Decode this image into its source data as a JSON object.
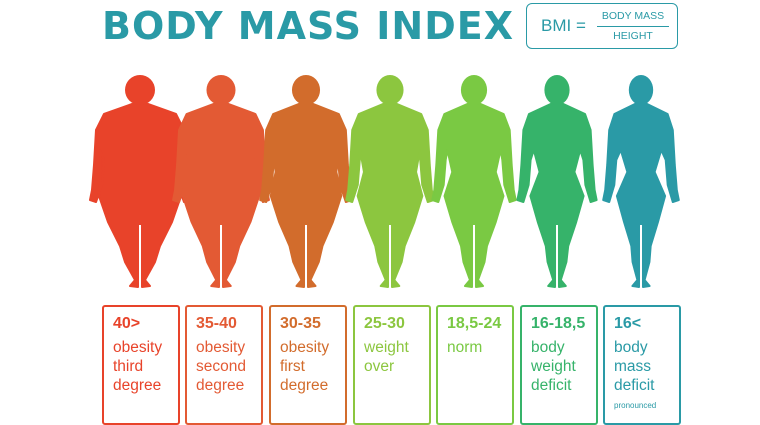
{
  "title": "BODY MASS INDEX",
  "formula": {
    "lhs": "BMI =",
    "numerator": "BODY MASS",
    "denominator": "HEIGHT"
  },
  "accent_color": "#2a9aa6",
  "categories": [
    {
      "range": "40>",
      "desc": "obesity\nthird\ndegree",
      "note": "",
      "color": "#e8432a",
      "build": 1.0
    },
    {
      "range": "35-40",
      "desc": "obesity\nsecond\ndegree",
      "note": "",
      "color": "#e35a34",
      "build": 0.84
    },
    {
      "range": "30-35",
      "desc": "obesity\nfirst\ndegree",
      "note": "",
      "color": "#d26c2c",
      "build": 0.68
    },
    {
      "range": "25-30",
      "desc": "weight\nover",
      "note": "",
      "color": "#8cc63f",
      "build": 0.52
    },
    {
      "range": "18,5-24",
      "desc": "norm",
      "note": "",
      "color": "#7ac943",
      "build": 0.36
    },
    {
      "range": "16-18,5",
      "desc": "body\nweight\ndeficit",
      "note": "",
      "color": "#36b36a",
      "build": 0.2
    },
    {
      "range": "16<",
      "desc": "body\nmass\ndeficit",
      "note": "pronounced",
      "color": "#2a9aa6",
      "build": 0.06
    }
  ]
}
